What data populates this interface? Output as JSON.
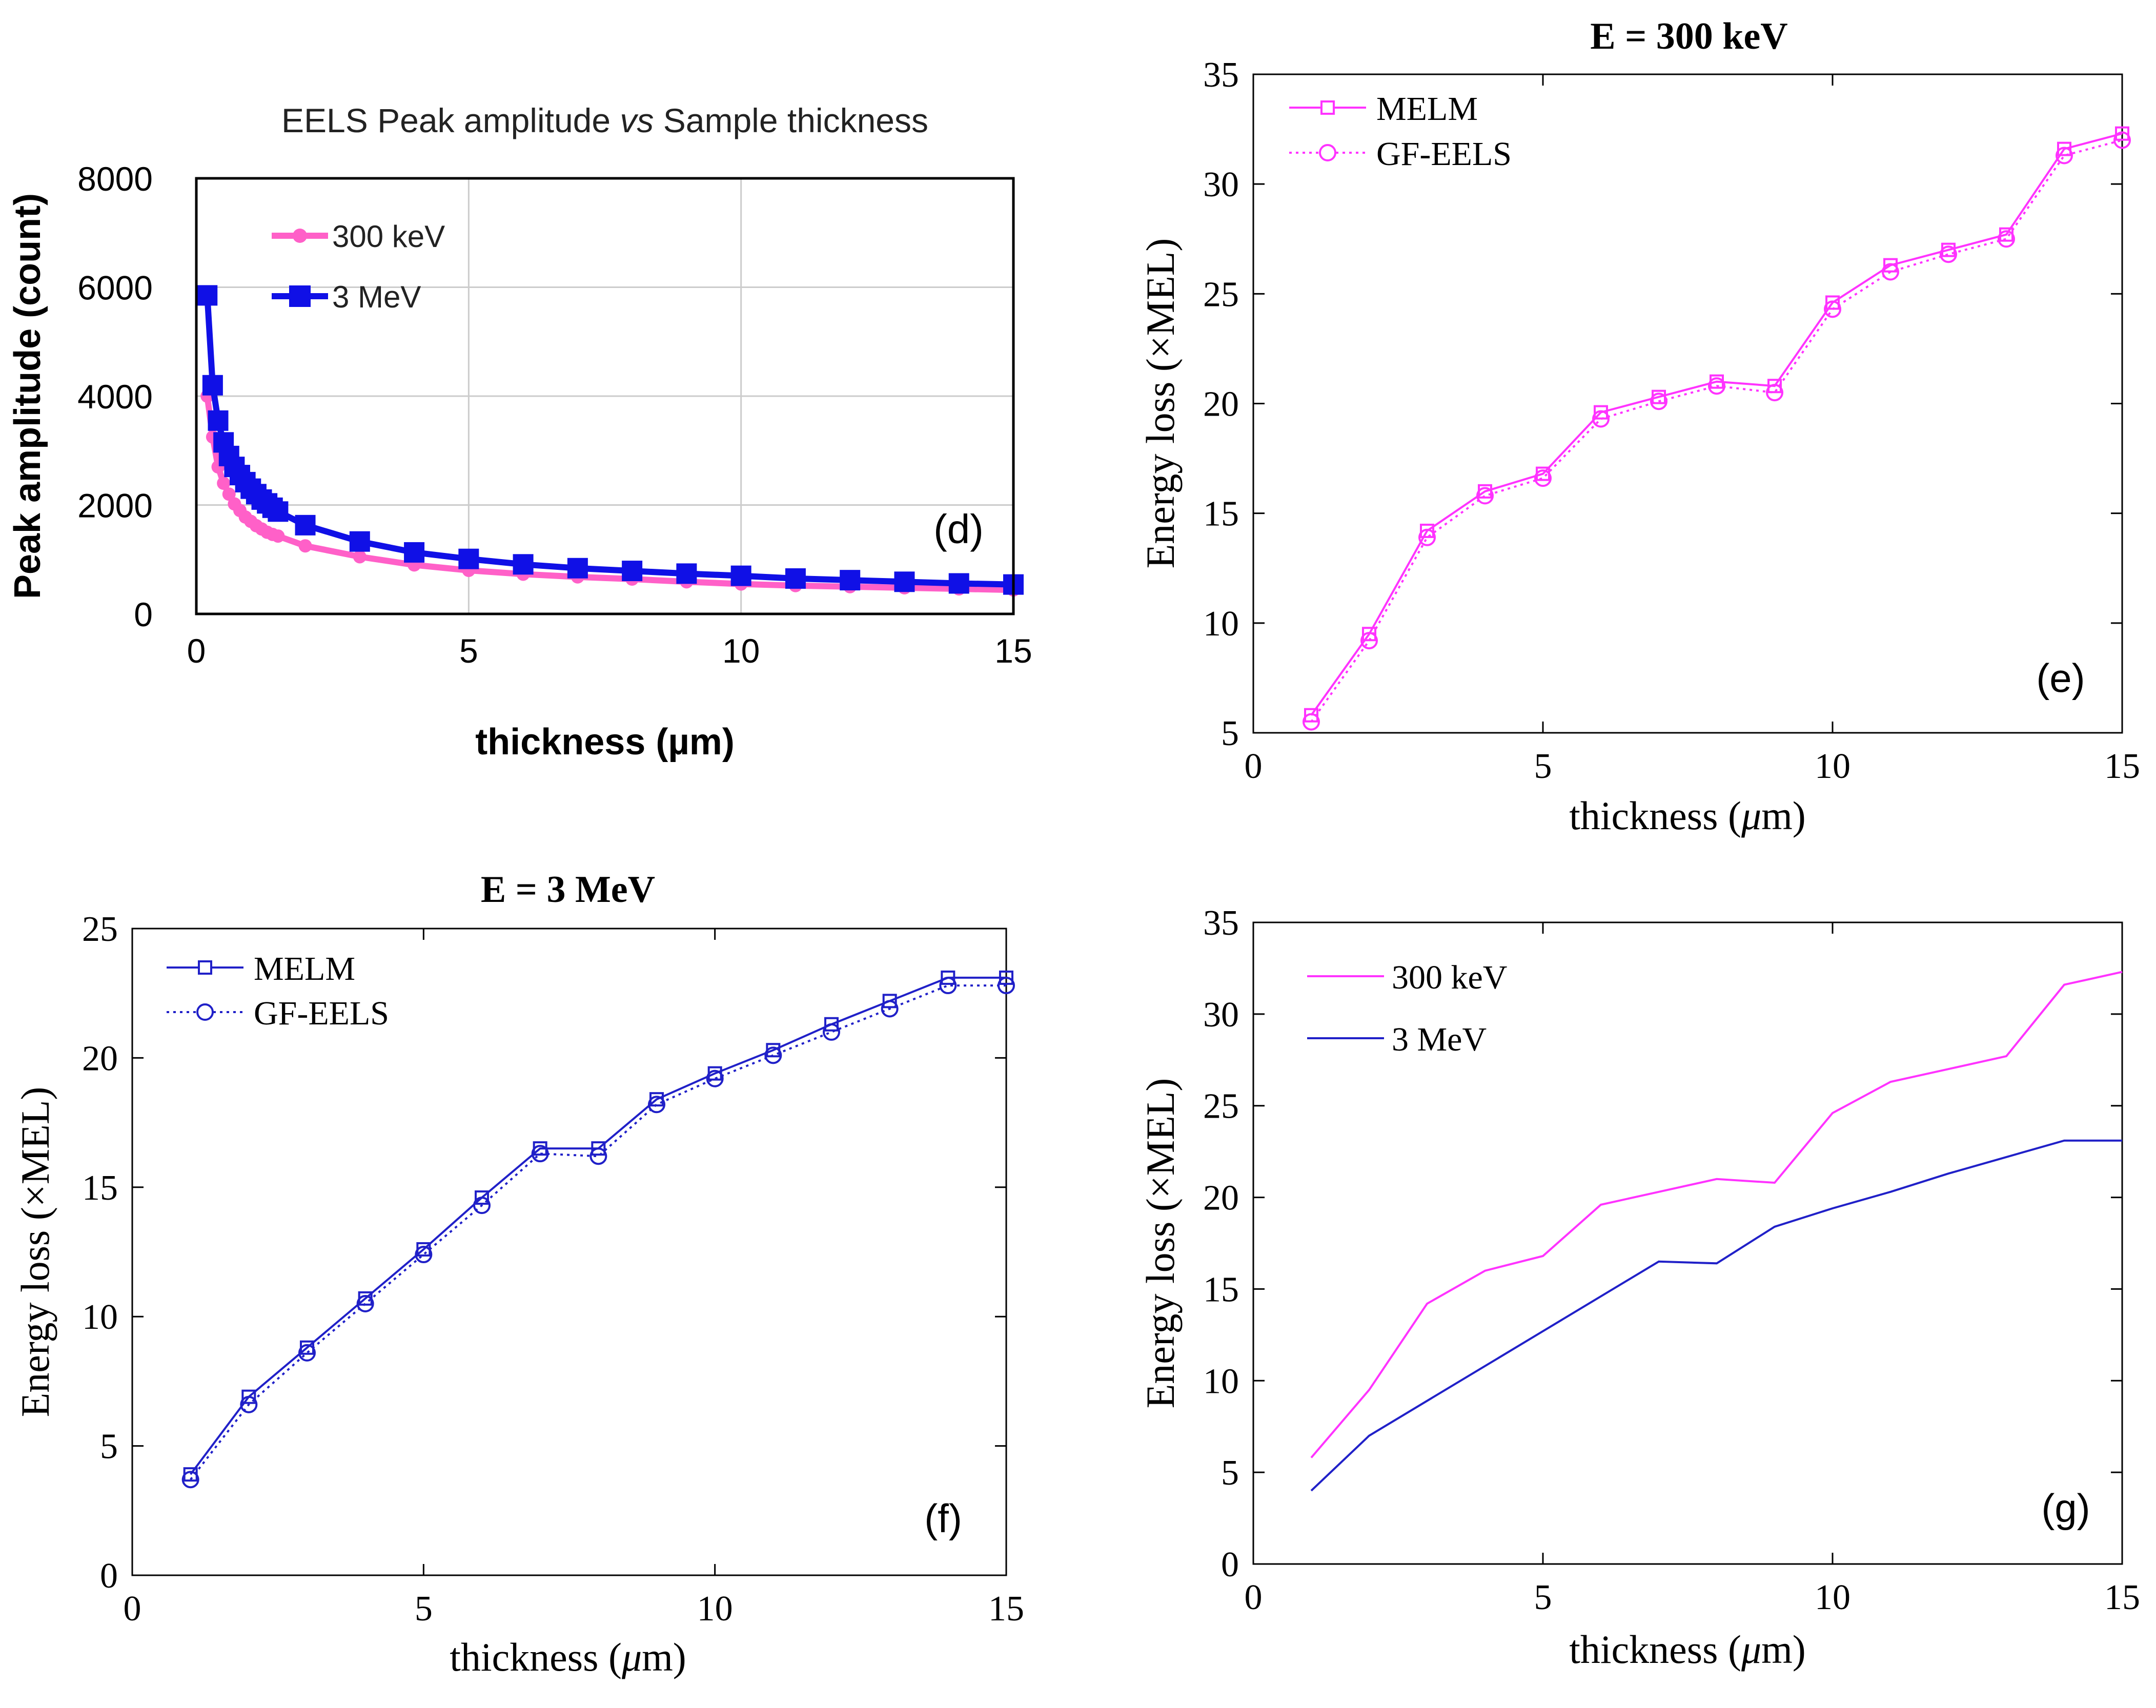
{
  "colors": {
    "magenta": "#ff33ff",
    "blue": "#2020c8",
    "pinkD": "#ff60c8",
    "blueD": "#1010e6",
    "grid": "#cccccc"
  },
  "chart_data": [
    {
      "id": "d",
      "type": "line",
      "title_pre": "EELS Peak amplitude ",
      "title_italic": "vs",
      "title_post": " Sample thickness",
      "xlabel": "thickness (µm)",
      "ylabel": "Peak amplitude (count)",
      "xlim": [
        0,
        15
      ],
      "ylim": [
        0,
        8000
      ],
      "xticks": [
        "0",
        "5",
        "10",
        "15"
      ],
      "yticks": [
        "0",
        "2000",
        "4000",
        "6000",
        "8000"
      ],
      "grid": true,
      "panel_label": "(d)",
      "legend_position": "top-left",
      "series": [
        {
          "name": "300 keV",
          "marker": "circle",
          "x": [
            0.2,
            0.3,
            0.4,
            0.5,
            0.6,
            0.7,
            0.8,
            0.9,
            1.0,
            1.1,
            1.2,
            1.3,
            1.4,
            1.5,
            2,
            3,
            4,
            5,
            6,
            7,
            8,
            9,
            10,
            11,
            12,
            13,
            14,
            15
          ],
          "y": [
            4000,
            3250,
            2700,
            2400,
            2200,
            2020,
            1900,
            1780,
            1700,
            1620,
            1560,
            1500,
            1460,
            1430,
            1250,
            1050,
            900,
            800,
            730,
            680,
            640,
            590,
            550,
            520,
            500,
            480,
            460,
            440
          ]
        },
        {
          "name": "3 MeV",
          "marker": "square",
          "x": [
            0.2,
            0.3,
            0.4,
            0.5,
            0.6,
            0.7,
            0.8,
            0.9,
            1.0,
            1.1,
            1.2,
            1.3,
            1.4,
            1.5,
            2,
            3,
            4,
            5,
            6,
            7,
            8,
            9,
            10,
            11,
            12,
            13,
            14,
            15
          ],
          "y": [
            5850,
            4200,
            3550,
            3150,
            2900,
            2700,
            2550,
            2420,
            2300,
            2200,
            2100,
            2030,
            1950,
            1880,
            1630,
            1330,
            1130,
            1010,
            910,
            840,
            790,
            740,
            700,
            650,
            620,
            590,
            560,
            540
          ]
        }
      ]
    },
    {
      "id": "e",
      "type": "line",
      "title": "E = 300 keV",
      "xlabel_pre": "thickness (",
      "xlabel_mu": "μ",
      "xlabel_post": "m)",
      "ylabel": "Energy loss (×MEL)",
      "xlim": [
        0,
        15
      ],
      "ylim": [
        5,
        35
      ],
      "xticks": [
        "0",
        "5",
        "10",
        "15"
      ],
      "yticks": [
        "5",
        "10",
        "15",
        "20",
        "25",
        "30",
        "35"
      ],
      "grid": false,
      "panel_label": "(e)",
      "legend_position": "top-left",
      "series": [
        {
          "name": "MELM",
          "marker": "square",
          "style": "solid",
          "x": [
            1,
            2,
            3,
            4,
            5,
            6,
            7,
            8,
            9,
            10,
            11,
            12,
            13,
            14,
            15
          ],
          "y": [
            5.8,
            9.5,
            14.2,
            16.0,
            16.8,
            19.6,
            20.3,
            21.0,
            20.8,
            24.6,
            26.3,
            27.0,
            27.7,
            31.6,
            32.3
          ]
        },
        {
          "name": "GF-EELS",
          "marker": "circle",
          "style": "dotted",
          "x": [
            1,
            2,
            3,
            4,
            5,
            6,
            7,
            8,
            9,
            10,
            11,
            12,
            13,
            14,
            15
          ],
          "y": [
            5.5,
            9.2,
            13.9,
            15.8,
            16.6,
            19.3,
            20.1,
            20.8,
            20.5,
            24.3,
            26.0,
            26.8,
            27.5,
            31.3,
            32.0
          ]
        }
      ]
    },
    {
      "id": "f",
      "type": "line",
      "title": "E = 3 MeV",
      "xlabel_pre": "thickness (",
      "xlabel_mu": "μ",
      "xlabel_post": "m)",
      "ylabel": "Energy loss (×MEL)",
      "xlim": [
        0,
        15
      ],
      "ylim": [
        0,
        25
      ],
      "xticks": [
        "0",
        "5",
        "10",
        "15"
      ],
      "yticks": [
        "0",
        "5",
        "10",
        "15",
        "20",
        "25"
      ],
      "grid": false,
      "panel_label": "(f)",
      "legend_position": "top-left",
      "series": [
        {
          "name": "MELM",
          "marker": "square",
          "style": "solid",
          "x": [
            1,
            2,
            3,
            4,
            5,
            6,
            7,
            8,
            9,
            10,
            11,
            12,
            13,
            14,
            15
          ],
          "y": [
            3.9,
            6.9,
            8.8,
            10.7,
            12.6,
            14.6,
            16.5,
            16.5,
            18.4,
            19.4,
            20.3,
            21.3,
            22.2,
            23.1,
            23.1
          ]
        },
        {
          "name": "GF-EELS",
          "marker": "circle",
          "style": "dotted",
          "x": [
            1,
            2,
            3,
            4,
            5,
            6,
            7,
            8,
            9,
            10,
            11,
            12,
            13,
            14,
            15
          ],
          "y": [
            3.7,
            6.6,
            8.6,
            10.5,
            12.4,
            14.3,
            16.3,
            16.2,
            18.2,
            19.2,
            20.1,
            21.0,
            21.9,
            22.8,
            22.8
          ]
        }
      ]
    },
    {
      "id": "g",
      "type": "line",
      "xlabel_pre": "thickness (",
      "xlabel_mu": "μ",
      "xlabel_post": "m)",
      "ylabel": "Energy loss (×MEL)",
      "xlim": [
        0,
        15
      ],
      "ylim": [
        0,
        35
      ],
      "xticks": [
        "0",
        "5",
        "10",
        "15"
      ],
      "yticks": [
        "0",
        "5",
        "10",
        "15",
        "20",
        "25",
        "30",
        "35"
      ],
      "grid": false,
      "panel_label": "(g)",
      "legend_position": "top-left",
      "series": [
        {
          "name": "300 keV",
          "x": [
            1,
            2,
            3,
            4,
            5,
            6,
            7,
            8,
            9,
            10,
            11,
            12,
            13,
            14,
            15
          ],
          "y": [
            5.8,
            9.5,
            14.2,
            16.0,
            16.8,
            19.6,
            20.3,
            21.0,
            20.8,
            24.6,
            26.3,
            27.0,
            27.7,
            31.6,
            32.3
          ]
        },
        {
          "name": "3 MeV",
          "x": [
            1,
            2,
            3,
            4,
            5,
            6,
            7,
            8,
            9,
            10,
            11,
            12,
            13,
            14,
            15
          ],
          "y": [
            4.0,
            7.0,
            8.9,
            10.8,
            12.7,
            14.6,
            16.5,
            16.4,
            18.4,
            19.4,
            20.3,
            21.3,
            22.2,
            23.1,
            23.1
          ]
        }
      ]
    }
  ]
}
